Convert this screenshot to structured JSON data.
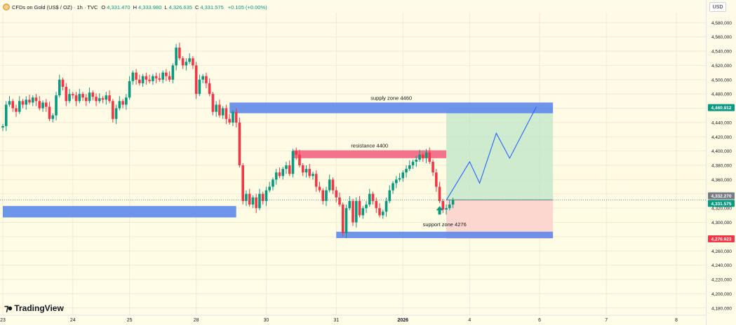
{
  "legend": {
    "symbol_icon": "gold-coin-icon",
    "title": "CFDs on Gold (US$ / OZ) · 1h · TVC",
    "o_label": "O",
    "o": "4,331.470",
    "h_label": "H",
    "h": "4,333.980",
    "l_label": "L",
    "l": "4,326.635",
    "c_label": "C",
    "c": "4,331.575",
    "change": "+0.105 (+0.00%)"
  },
  "currency": "USD",
  "brand": "TradingView",
  "chart_data": {
    "type": "candlestick",
    "title": "CFDs on Gold (US$ / OZ) · 1h · TVC",
    "y_ticks": [
      4180,
      4200,
      4220,
      4240,
      4260,
      4280,
      4300,
      4320,
      4340,
      4360,
      4380,
      4400,
      4420,
      4440,
      4460,
      4480,
      4500,
      4520,
      4540,
      4560,
      4580
    ],
    "y_tick_labels": [
      "4,180,000",
      "4,200,000",
      "4,220,000",
      "4,240,000",
      "4,260,000",
      "4,280,000",
      "4,300,000",
      "4,320,000",
      "4,340,000",
      "4,360,000",
      "4,380,000",
      "4,400,000",
      "4,420,000",
      "4,440,000",
      "4,460,000",
      "4,480,000",
      "4,500,000",
      "4,520,000",
      "4,540,000",
      "4,560,000",
      "4,580,000"
    ],
    "ylim": [
      4170,
      4594
    ],
    "x_ticks": [
      {
        "label": "23",
        "index": 0
      },
      {
        "label": "24",
        "index": 21
      },
      {
        "label": "25",
        "index": 38
      },
      {
        "label": "28",
        "index": 58
      },
      {
        "label": "30",
        "index": 79
      },
      {
        "label": "31",
        "index": 100
      },
      {
        "label": "2026",
        "index": 120
      },
      {
        "label": "4",
        "index": 140
      },
      {
        "label": "6",
        "index": 161
      },
      {
        "label": "7",
        "index": 181
      },
      {
        "label": "8",
        "index": 202
      }
    ],
    "x_range": [
      0,
      210
    ],
    "price_badges": [
      {
        "label": "4,460.912",
        "value": 4460.912,
        "color": "#089981"
      },
      {
        "label": "4,332.270",
        "value": 4332.27,
        "color": "#787b86"
      },
      {
        "label": "4,331.575",
        "value": 4331.575,
        "color": "#089981"
      },
      {
        "label": "4,276.923",
        "value": 4276.923,
        "color": "#f23645"
      }
    ],
    "close_series": [
      4435,
      4465,
      4470,
      4460,
      4455,
      4470,
      4465,
      4472,
      4468,
      4475,
      4470,
      4460,
      4468,
      4462,
      4445,
      4450,
      4478,
      4500,
      4490,
      4470,
      4480,
      4478,
      4470,
      4480,
      4475,
      4470,
      4482,
      4476,
      4470,
      4474,
      4472,
      4478,
      4470,
      4445,
      4460,
      4470,
      4465,
      4475,
      4498,
      4510,
      4500,
      4495,
      4505,
      4500,
      4498,
      4505,
      4502,
      4500,
      4510,
      4505,
      4500,
      4520,
      4545,
      4530,
      4520,
      4525,
      4530,
      4520,
      4480,
      4500,
      4505,
      4495,
      4480,
      4455,
      4465,
      4450,
      4460,
      4445,
      4440,
      4455,
      4440,
      4380,
      4330,
      4340,
      4325,
      4335,
      4320,
      4340,
      4330,
      4345,
      4350,
      4360,
      4370,
      4365,
      4375,
      4380,
      4368,
      4400,
      4395,
      4380,
      4370,
      4375,
      4365,
      4368,
      4350,
      4345,
      4330,
      4345,
      4360,
      4345,
      4335,
      4325,
      4285,
      4320,
      4330,
      4300,
      4330,
      4310,
      4320,
      4325,
      4340,
      4330,
      4320,
      4310,
      4315,
      4330,
      4345,
      4355,
      4360,
      4362,
      4370,
      4375,
      4380,
      4385,
      4388,
      4395,
      4390,
      4398,
      4385,
      4370,
      4350,
      4330,
      4318,
      4320,
      4325,
      4331.575
    ],
    "forecast_path": [
      [
        133,
        4331
      ],
      [
        140,
        4385
      ],
      [
        143,
        4355
      ],
      [
        148,
        4425
      ],
      [
        152,
        4390
      ],
      [
        160,
        4462
      ]
    ],
    "zones": [
      {
        "label": "supply zone 4460",
        "from": 4453,
        "to": 4468,
        "x0": 68,
        "x1": 165,
        "color": "#5b86ea"
      },
      {
        "label": "resistance 4400",
        "from": 4390,
        "to": 4401,
        "x0": 87,
        "x1": 133,
        "color": "#f0607e"
      },
      {
        "label": "support zone 4276",
        "from": 4278,
        "to": 4287,
        "x0": 100,
        "x1": 165,
        "color": "#5b86ea"
      },
      {
        "label": "",
        "from": 4307,
        "to": 4323,
        "x0": 0,
        "x1": 70,
        "color": "#5b86ea"
      }
    ],
    "position": {
      "entry": 4331.575,
      "target": 4460.912,
      "stop": 4276.923,
      "x0": 133,
      "x1": 165
    },
    "up_color": "#089981",
    "down_color": "#f23645"
  }
}
